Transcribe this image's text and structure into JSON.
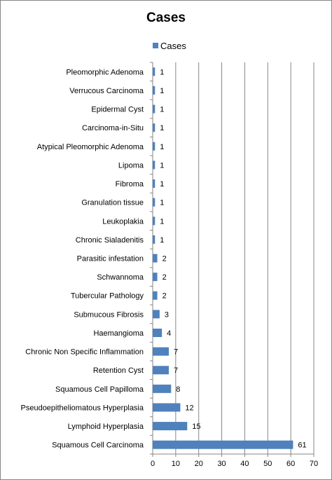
{
  "chart_data": {
    "type": "bar",
    "orientation": "horizontal",
    "title": "Cases",
    "xlabel": "",
    "ylabel": "",
    "xlim": [
      0,
      70
    ],
    "x_ticks": [
      0,
      10,
      20,
      30,
      40,
      50,
      60,
      70
    ],
    "grid": true,
    "legend_position": "top",
    "bar_color": "#4f81bd",
    "categories": [
      "Pleomorphic Adenoma",
      "Verrucous Carcinoma",
      "Epidermal Cyst",
      "Carcinoma-in-Situ",
      "Atypical Pleomorphic Adenoma",
      "Lipoma",
      "Fibroma",
      "Granulation tissue",
      "Leukoplakia",
      "Chronic Sialadenitis",
      "Parasitic infestation",
      "Schwannoma",
      "Tubercular Pathology",
      "Submucous Fibrosis",
      "Haemangioma",
      "Chronic Non Specific Inflammation",
      "Retention Cyst",
      "Squamous Cell Papilloma",
      "Pseudoepitheliomatous Hyperplasia",
      "Lymphoid Hyperplasia",
      "Squamous Cell Carcinoma"
    ],
    "series": [
      {
        "name": "Cases",
        "values": [
          1,
          1,
          1,
          1,
          1,
          1,
          1,
          1,
          1,
          1,
          2,
          2,
          2,
          3,
          4,
          7,
          7,
          8,
          12,
          15,
          61
        ]
      }
    ]
  }
}
